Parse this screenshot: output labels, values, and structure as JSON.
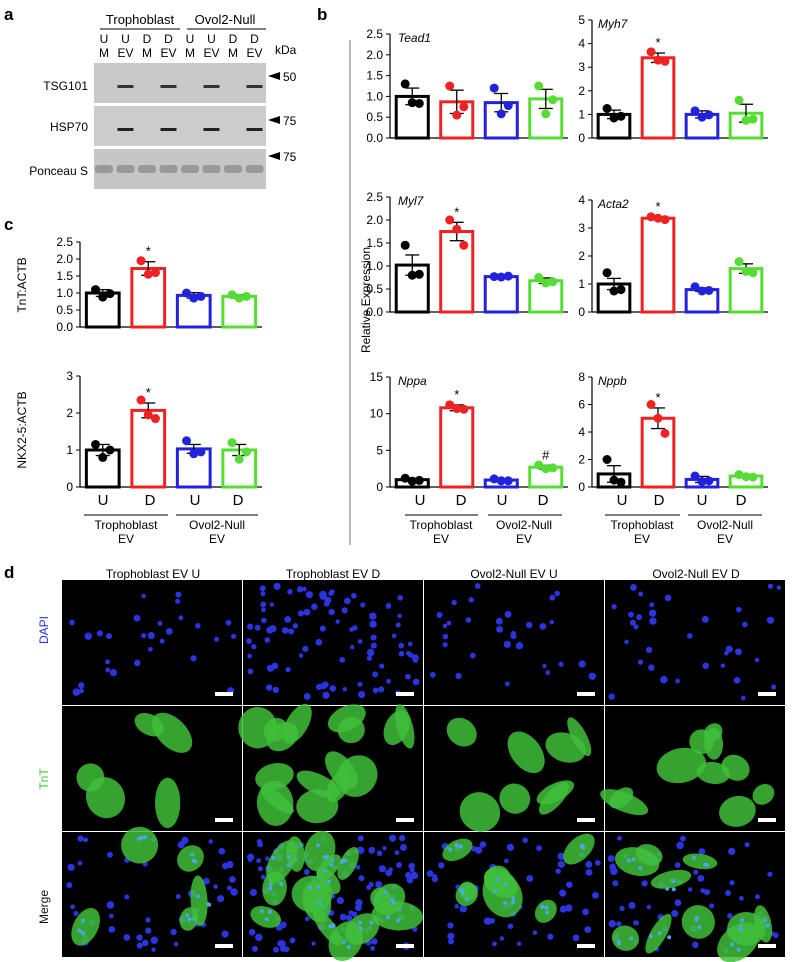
{
  "panels": {
    "a": {
      "label": "a",
      "groups": [
        "Trophoblast",
        "Ovol2-Null"
      ],
      "lanes": [
        [
          "U",
          "M"
        ],
        [
          "U",
          "EV"
        ],
        [
          "D",
          "M"
        ],
        [
          "D",
          "EV"
        ],
        [
          "U",
          "M"
        ],
        [
          "U",
          "EV"
        ],
        [
          "D",
          "M"
        ],
        [
          "D",
          "EV"
        ]
      ],
      "unit_label": "kDa",
      "rows": [
        {
          "name": "TSG101",
          "marker": "50"
        },
        {
          "name": "HSP70",
          "marker": "75"
        },
        {
          "name": "Ponceau S",
          "marker": "75"
        }
      ]
    },
    "b": {
      "label": "b",
      "ylabel": "Relative Expression",
      "xticks": [
        "U",
        "D",
        "U",
        "D"
      ],
      "groups": [
        [
          "Trophoblast",
          "EV"
        ],
        [
          "Ovol2-Null",
          "EV"
        ]
      ]
    },
    "c": {
      "label": "c",
      "xticks": [
        "U",
        "D",
        "U",
        "D"
      ],
      "groups": [
        [
          "Trophoblast",
          "EV"
        ],
        [
          "Ovol2-Null",
          "EV"
        ]
      ]
    },
    "d": {
      "label": "d",
      "columns": [
        "Trophoblast EV U",
        "Trophoblast EV D",
        "Ovol2-Null EV U",
        "Ovol2-Null EV D"
      ],
      "rows": [
        "DAPI",
        "TnT",
        "Merge"
      ],
      "row_colors": [
        "#2233dd",
        "#33cc33",
        "#111111"
      ]
    }
  },
  "colors": {
    "black": "#000000",
    "red": "#ee2222",
    "blue": "#2222dd",
    "green": "#55dd33"
  },
  "chart_data": [
    {
      "type": "bar",
      "id": "Tead1",
      "title": "Tead1",
      "categories": [
        "U",
        "D",
        "U",
        "D"
      ],
      "values": [
        1.0,
        0.87,
        0.85,
        0.94
      ],
      "errors": [
        0.2,
        0.28,
        0.22,
        0.23
      ],
      "points": [
        [
          1.3,
          0.85,
          0.83
        ],
        [
          1.25,
          0.55,
          0.75
        ],
        [
          1.2,
          0.58,
          0.78
        ],
        [
          1.25,
          0.58,
          0.92
        ]
      ],
      "ylim": [
        0,
        2.5
      ],
      "yticks": [
        0.0,
        0.5,
        1.0,
        1.5,
        2.0,
        2.5
      ],
      "annotations": [
        "",
        "",
        "",
        ""
      ]
    },
    {
      "type": "bar",
      "id": "Myh7",
      "title": "Myh7",
      "categories": [
        "U",
        "D",
        "U",
        "D"
      ],
      "values": [
        1.0,
        3.4,
        1.0,
        1.05
      ],
      "errors": [
        0.18,
        0.2,
        0.15,
        0.38
      ],
      "points": [
        [
          1.25,
          0.85,
          0.92
        ],
        [
          3.65,
          3.3,
          3.25
        ],
        [
          1.15,
          0.88,
          0.98
        ],
        [
          1.6,
          0.75,
          0.8
        ]
      ],
      "ylim": [
        0,
        5
      ],
      "yticks": [
        0,
        1,
        2,
        3,
        4,
        5
      ],
      "annotations": [
        "",
        "*",
        "",
        ""
      ]
    },
    {
      "type": "bar",
      "id": "Myl7",
      "title": "Myl7",
      "categories": [
        "U",
        "D",
        "U",
        "D"
      ],
      "values": [
        1.02,
        1.75,
        0.77,
        0.68
      ],
      "errors": [
        0.22,
        0.2,
        0.03,
        0.06
      ],
      "points": [
        [
          1.45,
          0.8,
          0.82
        ],
        [
          2.0,
          1.8,
          1.45
        ],
        [
          0.77,
          0.76,
          0.78
        ],
        [
          0.75,
          0.63,
          0.66
        ]
      ],
      "ylim": [
        0,
        2.5
      ],
      "yticks": [
        0.0,
        0.5,
        1.0,
        1.5,
        2.0,
        2.5
      ],
      "annotations": [
        "",
        "*",
        "",
        ""
      ]
    },
    {
      "type": "bar",
      "id": "Acta2",
      "title": "Acta2",
      "categories": [
        "U",
        "D",
        "U",
        "D"
      ],
      "values": [
        1.0,
        3.35,
        0.8,
        1.55
      ],
      "errors": [
        0.2,
        0.05,
        0.06,
        0.17
      ],
      "points": [
        [
          1.4,
          0.75,
          0.8
        ],
        [
          3.4,
          3.35,
          3.3
        ],
        [
          0.9,
          0.75,
          0.77
        ],
        [
          1.8,
          1.45,
          1.4
        ]
      ],
      "ylim": [
        0,
        4
      ],
      "yticks": [
        0,
        1,
        2,
        3,
        4
      ],
      "annotations": [
        "",
        "*",
        "",
        ""
      ]
    },
    {
      "type": "bar",
      "id": "Nppa",
      "title": "Nppa",
      "categories": [
        "U",
        "D",
        "U",
        "D"
      ],
      "values": [
        1.0,
        10.8,
        0.95,
        2.7
      ],
      "errors": [
        0.2,
        0.4,
        0.15,
        0.25
      ],
      "points": [
        [
          1.2,
          0.8,
          0.9
        ],
        [
          11.2,
          10.7,
          10.6
        ],
        [
          1.1,
          0.85,
          0.85
        ],
        [
          3.0,
          2.5,
          2.6
        ]
      ],
      "ylim": [
        0,
        15
      ],
      "yticks": [
        0,
        5,
        10,
        15
      ],
      "annotations": [
        "",
        "*",
        "",
        "#"
      ]
    },
    {
      "type": "bar",
      "id": "Nppb",
      "title": "Nppb",
      "categories": [
        "U",
        "D",
        "U",
        "D"
      ],
      "values": [
        0.95,
        5.0,
        0.55,
        0.8
      ],
      "errors": [
        0.6,
        0.75,
        0.22,
        0.1
      ],
      "points": [
        [
          2.0,
          0.5,
          0.35
        ],
        [
          6.0,
          5.0,
          3.9
        ],
        [
          0.8,
          0.4,
          0.45
        ],
        [
          0.9,
          0.75,
          0.72
        ]
      ],
      "ylim": [
        0,
        8
      ],
      "yticks": [
        0,
        2,
        4,
        6,
        8
      ],
      "annotations": [
        "",
        "*",
        "",
        ""
      ]
    },
    {
      "type": "bar",
      "id": "TnT",
      "title": "",
      "ylabel": "TnT:ACTB",
      "categories": [
        "U",
        "D",
        "U",
        "D"
      ],
      "values": [
        1.0,
        1.72,
        0.93,
        0.9
      ],
      "errors": [
        0.1,
        0.2,
        0.08,
        0.05
      ],
      "points": [
        [
          1.1,
          0.88,
          0.98
        ],
        [
          1.95,
          1.55,
          1.6
        ],
        [
          1.0,
          0.85,
          0.9
        ],
        [
          0.95,
          0.85,
          0.9
        ]
      ],
      "ylim": [
        0,
        2.5
      ],
      "yticks": [
        0.0,
        0.5,
        1.0,
        1.5,
        2.0,
        2.5
      ],
      "annotations": [
        "",
        "*",
        "",
        ""
      ]
    },
    {
      "type": "bar",
      "id": "NKX25",
      "title": "",
      "ylabel": "NKX2-5:ACTB",
      "categories": [
        "U",
        "D",
        "U",
        "D"
      ],
      "values": [
        1.0,
        2.07,
        1.03,
        1.0
      ],
      "errors": [
        0.15,
        0.2,
        0.12,
        0.15
      ],
      "points": [
        [
          1.15,
          0.8,
          1.0
        ],
        [
          2.35,
          1.95,
          1.85
        ],
        [
          1.25,
          0.9,
          0.95
        ],
        [
          1.2,
          0.75,
          0.95
        ]
      ],
      "ylim": [
        0,
        3
      ],
      "yticks": [
        0,
        1,
        2,
        3
      ],
      "annotations": [
        "",
        "*",
        "",
        ""
      ]
    }
  ]
}
